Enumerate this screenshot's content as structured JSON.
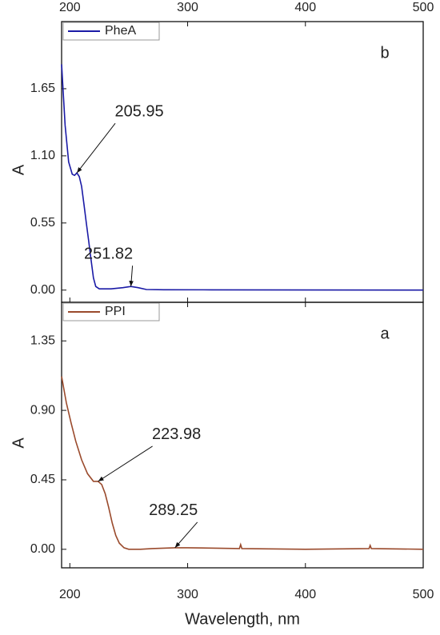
{
  "chart_data": [
    {
      "type": "line",
      "ylabel": "A",
      "panel_label": "b",
      "xaxis_position": "top",
      "legend": "upper left",
      "xlim": [
        193,
        500
      ],
      "xticks": [
        200,
        300,
        400,
        500
      ],
      "ylim": [
        -0.1,
        2.2
      ],
      "yticks": [
        {
          "value": 0,
          "label": "0.00"
        },
        0.55,
        {
          "value": 1.1,
          "label": "1.10"
        },
        1.65
      ],
      "series": [
        {
          "name": "PheA",
          "color": "#1a1aa6",
          "x": [
            193,
            196,
            199,
            202,
            204,
            205.95,
            208,
            210,
            212,
            214,
            216,
            218,
            220,
            222,
            225,
            235,
            245,
            251.82,
            258,
            265,
            280,
            320,
            400,
            500
          ],
          "values": [
            1.85,
            1.35,
            1.05,
            0.95,
            0.94,
            0.96,
            0.93,
            0.85,
            0.7,
            0.55,
            0.4,
            0.25,
            0.1,
            0.03,
            0.01,
            0.01,
            0.02,
            0.03,
            0.02,
            0.005,
            0.003,
            0.002,
            0.001,
            0
          ]
        }
      ],
      "annotations": [
        {
          "label": "205.95",
          "x": 205.95,
          "y": 0.96
        },
        {
          "label": "251.82",
          "x": 251.82,
          "y": 0.03
        }
      ]
    },
    {
      "type": "line",
      "ylabel": "A",
      "xlabel": "Wavelength, nm",
      "panel_label": "a",
      "xaxis_position": "bottom",
      "legend": "upper left",
      "xlim": [
        193,
        500
      ],
      "xticks": [
        200,
        300,
        400,
        500
      ],
      "ylim": [
        -0.12,
        1.6
      ],
      "yticks": [
        {
          "value": 0,
          "label": "0.00"
        },
        0.45,
        {
          "value": 0.9,
          "label": "0.90"
        },
        1.35
      ],
      "series": [
        {
          "name": "PPI",
          "color": "#9a4a2c",
          "x": [
            193,
            197,
            201,
            205,
            210,
            215,
            220,
            223.98,
            227,
            230,
            233,
            236,
            239,
            242,
            246,
            250,
            260,
            270,
            289.25,
            300,
            344,
            345,
            346,
            400,
            454,
            455,
            456,
            500
          ],
          "values": [
            1.12,
            0.95,
            0.82,
            0.7,
            0.58,
            0.49,
            0.44,
            0.44,
            0.42,
            0.36,
            0.27,
            0.17,
            0.09,
            0.04,
            0.01,
            0,
            0,
            0.005,
            0.01,
            0.01,
            0.005,
            0.03,
            0.005,
            0,
            0.005,
            0.025,
            0.005,
            0
          ]
        }
      ],
      "annotations": [
        {
          "label": "223.98",
          "x": 223.98,
          "y": 0.44
        },
        {
          "label": "289.25",
          "x": 289.25,
          "y": 0.01
        }
      ]
    }
  ]
}
